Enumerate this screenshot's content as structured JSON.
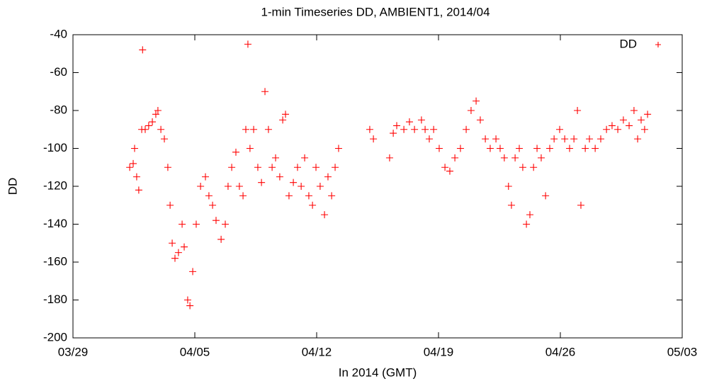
{
  "chart_data": {
    "type": "scatter",
    "title": "1-min Timeseries DD, AMBIENT1, 2014/04",
    "x_label": "In 2014 (GMT)",
    "y_label": "DD",
    "xlim": [
      0,
      35
    ],
    "xticks": [
      {
        "value": 0,
        "label": "03/29"
      },
      {
        "value": 7,
        "label": "04/05"
      },
      {
        "value": 14,
        "label": "04/12"
      },
      {
        "value": 21,
        "label": "04/19"
      },
      {
        "value": 28,
        "label": "04/26"
      },
      {
        "value": 35,
        "label": "05/03"
      }
    ],
    "ylim": [
      -200,
      -40
    ],
    "yticks": [
      -200,
      -180,
      -160,
      -140,
      -120,
      -100,
      -80,
      -60,
      -40
    ],
    "grid": false,
    "legend": "top right",
    "series": [
      {
        "name": "DD",
        "color": "#ff0000",
        "x": [
          3.26,
          3.46,
          3.54,
          3.66,
          3.78,
          3.95,
          4.0,
          4.15,
          4.35,
          4.56,
          4.76,
          4.88,
          5.05,
          5.25,
          5.45,
          5.58,
          5.7,
          5.86,
          6.06,
          6.27,
          6.39,
          6.59,
          6.72,
          6.88,
          7.08,
          7.33,
          7.61,
          7.81,
          8.02,
          8.22,
          8.51,
          8.75,
          8.91,
          9.12,
          9.36,
          9.56,
          9.77,
          9.93,
          10.05,
          10.17,
          10.38,
          10.62,
          10.83,
          11.03,
          11.23,
          11.44,
          11.64,
          11.88,
          12.05,
          12.21,
          12.41,
          12.66,
          12.9,
          13.11,
          13.31,
          13.55,
          13.76,
          13.96,
          14.2,
          14.45,
          14.65,
          14.86,
          15.06,
          15.26,
          17.05,
          17.26,
          18.19,
          18.4,
          18.6,
          19.01,
          19.33,
          19.62,
          20.02,
          20.23,
          20.47,
          20.72,
          21.04,
          21.37,
          21.65,
          21.94,
          22.26,
          22.59,
          22.87,
          23.16,
          23.4,
          23.69,
          23.97,
          24.3,
          24.54,
          24.78,
          25.02,
          25.19,
          25.4,
          25.64,
          25.84,
          26.05,
          26.25,
          26.46,
          26.66,
          26.9,
          27.15,
          27.39,
          27.64,
          27.96,
          28.25,
          28.53,
          28.78,
          28.98,
          29.18,
          29.43,
          29.67,
          30.0,
          30.32,
          30.65,
          30.97,
          31.3,
          31.62,
          31.95,
          32.23,
          32.44,
          32.64,
          32.84,
          33.01
        ],
        "values": [
          -110,
          -108,
          -100,
          -115,
          -122,
          -90,
          -48,
          -90,
          -88,
          -86,
          -82,
          -80,
          -90,
          -95,
          -110,
          -130,
          -150,
          -158,
          -155,
          -140,
          -152,
          -180,
          -183,
          -165,
          -140,
          -120,
          -115,
          -125,
          -130,
          -138,
          -148,
          -140,
          -120,
          -110,
          -102,
          -120,
          -125,
          -90,
          -45,
          -100,
          -90,
          -110,
          -118,
          -70,
          -90,
          -110,
          -105,
          -115,
          -85,
          -82,
          -125,
          -118,
          -110,
          -120,
          -105,
          -125,
          -130,
          -110,
          -120,
          -135,
          -115,
          -125,
          -110,
          -100,
          -90,
          -95,
          -105,
          -92,
          -88,
          -90,
          -86,
          -90,
          -85,
          -90,
          -95,
          -90,
          -100,
          -110,
          -112,
          -105,
          -100,
          -90,
          -80,
          -75,
          -85,
          -95,
          -100,
          -95,
          -100,
          -105,
          -120,
          -130,
          -105,
          -100,
          -110,
          -140,
          -135,
          -110,
          -100,
          -105,
          -125,
          -100,
          -95,
          -90,
          -95,
          -100,
          -95,
          -80,
          -130,
          -100,
          -95,
          -100,
          -95,
          -90,
          -88,
          -90,
          -85,
          -88,
          -80,
          -95,
          -85,
          -90,
          -82
        ]
      }
    ]
  }
}
